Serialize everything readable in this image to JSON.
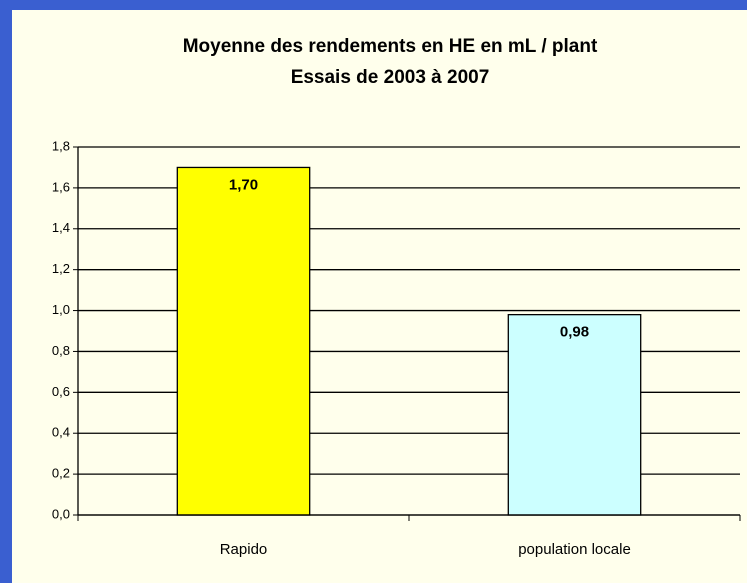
{
  "chart_data": {
    "type": "bar",
    "title": "Moyenne des rendements en HE en mL / plant",
    "subtitle": "Essais de 2003 à 2007",
    "categories": [
      "Rapido",
      "population locale"
    ],
    "values": [
      1.7,
      0.98
    ],
    "value_labels": [
      "1,70",
      "0,98"
    ],
    "colors": [
      "#ffff00",
      "#ccffff"
    ],
    "ylim": [
      0,
      1.8
    ],
    "yticks": [
      {
        "value": 0,
        "label": "0,0"
      },
      {
        "value": 0.2,
        "label": "0,2"
      },
      {
        "value": 0.4,
        "label": "0,4"
      },
      {
        "value": 0.6,
        "label": "0,6"
      },
      {
        "value": 0.8,
        "label": "0,8"
      },
      {
        "value": 1.0,
        "label": "1,0"
      },
      {
        "value": 1.2,
        "label": "1,2"
      },
      {
        "value": 1.4,
        "label": "1,4"
      },
      {
        "value": 1.6,
        "label": "1,6"
      },
      {
        "value": 1.8,
        "label": "1,8"
      }
    ],
    "grid": true
  }
}
